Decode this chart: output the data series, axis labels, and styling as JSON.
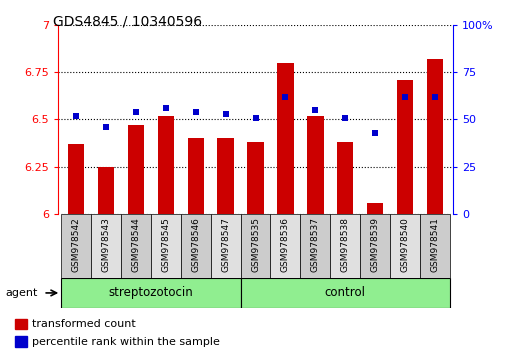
{
  "title": "GDS4845 / 10340596",
  "samples": [
    "GSM978542",
    "GSM978543",
    "GSM978544",
    "GSM978545",
    "GSM978546",
    "GSM978547",
    "GSM978535",
    "GSM978536",
    "GSM978537",
    "GSM978538",
    "GSM978539",
    "GSM978540",
    "GSM978541"
  ],
  "bar_values": [
    6.37,
    6.25,
    6.47,
    6.52,
    6.4,
    6.4,
    6.38,
    6.8,
    6.52,
    6.38,
    6.06,
    6.71,
    6.82
  ],
  "percentile_values": [
    52,
    46,
    54,
    56,
    54,
    53,
    51,
    62,
    55,
    51,
    43,
    62,
    62
  ],
  "ylim_left": [
    6.0,
    7.0
  ],
  "ylim_right": [
    0,
    100
  ],
  "yticks_left": [
    6.0,
    6.25,
    6.5,
    6.75,
    7.0
  ],
  "yticks_right": [
    0,
    25,
    50,
    75,
    100
  ],
  "ytick_labels_left": [
    "6",
    "6.25",
    "6.5",
    "6.75",
    "7"
  ],
  "ytick_labels_right": [
    "0",
    "25",
    "50",
    "75",
    "100%"
  ],
  "bar_color": "#cc0000",
  "dot_color": "#0000cc",
  "green_color": "#90EE90",
  "legend_bar": "transformed count",
  "legend_dot": "percentile rank within the sample",
  "bar_width": 0.55,
  "base_value": 6.0,
  "strep_count": 6,
  "control_count": 7,
  "strep_label": "streptozotocin",
  "ctrl_label": "control",
  "agent_label": "agent"
}
